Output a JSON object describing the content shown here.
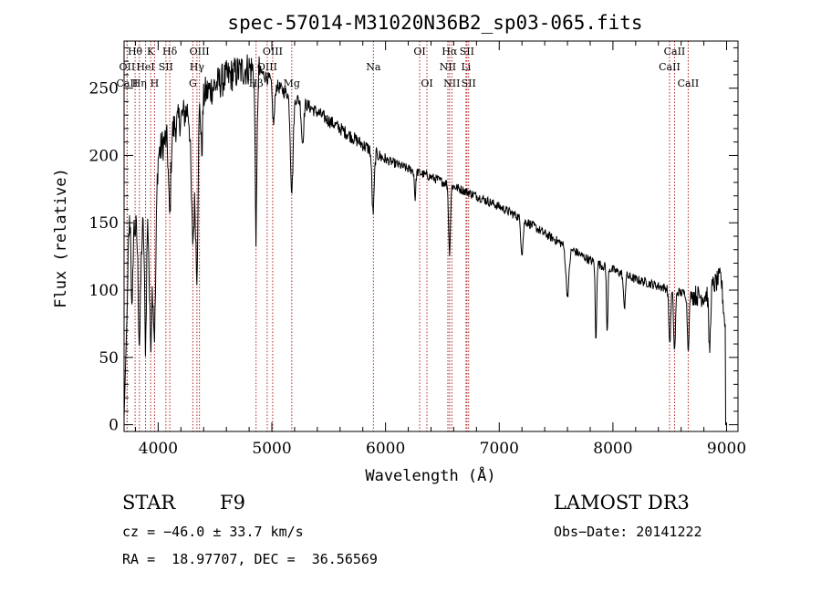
{
  "chart_data": {
    "type": "line",
    "title": "spec-57014-M31020N36B2_sp03-065.fits",
    "xlabel": "Wavelength (Å)",
    "ylabel": "Flux (relative)",
    "xlim": [
      3700,
      9100
    ],
    "ylim": [
      -5,
      285
    ],
    "x_ticks": [
      4000,
      5000,
      6000,
      7000,
      8000,
      9000
    ],
    "y_ticks": [
      0,
      50,
      100,
      150,
      200,
      250
    ],
    "continuum": [
      [
        3700,
        100
      ],
      [
        3750,
        150
      ],
      [
        3800,
        145
      ],
      [
        3850,
        140
      ],
      [
        3900,
        160
      ],
      [
        3950,
        185
      ],
      [
        4000,
        200
      ],
      [
        4050,
        210
      ],
      [
        4100,
        215
      ],
      [
        4150,
        222
      ],
      [
        4200,
        228
      ],
      [
        4300,
        238
      ],
      [
        4400,
        245
      ],
      [
        4500,
        252
      ],
      [
        4600,
        258
      ],
      [
        4700,
        262
      ],
      [
        4800,
        265
      ],
      [
        4900,
        262
      ],
      [
        5000,
        255
      ],
      [
        5100,
        248
      ],
      [
        5200,
        243
      ],
      [
        5300,
        238
      ],
      [
        5400,
        232
      ],
      [
        5500,
        226
      ],
      [
        5600,
        220
      ],
      [
        5700,
        214
      ],
      [
        5800,
        208
      ],
      [
        5900,
        202
      ],
      [
        6000,
        197
      ],
      [
        6200,
        190
      ],
      [
        6400,
        184
      ],
      [
        6600,
        177
      ],
      [
        6800,
        170
      ],
      [
        7000,
        162
      ],
      [
        7200,
        153
      ],
      [
        7400,
        142
      ],
      [
        7600,
        132
      ],
      [
        7800,
        122
      ],
      [
        8000,
        115
      ],
      [
        8200,
        108
      ],
      [
        8400,
        103
      ],
      [
        8600,
        98
      ],
      [
        8800,
        95
      ],
      [
        8950,
        110
      ],
      [
        9000,
        60
      ]
    ],
    "absorption_features": [
      [
        3720,
        95,
        8
      ],
      [
        3770,
        70,
        6
      ],
      [
        3835,
        80,
        10
      ],
      [
        3889,
        95,
        8
      ],
      [
        3934,
        110,
        12
      ],
      [
        3968,
        120,
        12
      ],
      [
        4101,
        60,
        10
      ],
      [
        4305,
        100,
        15
      ],
      [
        4340,
        120,
        10
      ],
      [
        4383,
        40,
        8
      ],
      [
        4861,
        120,
        8
      ],
      [
        5015,
        30,
        10
      ],
      [
        5175,
        70,
        12
      ],
      [
        5270,
        30,
        10
      ],
      [
        5890,
        45,
        10
      ],
      [
        6260,
        20,
        6
      ],
      [
        6563,
        50,
        8
      ],
      [
        7200,
        25,
        10
      ],
      [
        7600,
        35,
        14
      ],
      [
        7850,
        60,
        6
      ],
      [
        7950,
        50,
        6
      ],
      [
        8100,
        25,
        8
      ],
      [
        8500,
        40,
        8
      ],
      [
        8542,
        45,
        8
      ],
      [
        8662,
        40,
        8
      ],
      [
        8850,
        45,
        8
      ]
    ],
    "lines": [
      {
        "name": "CaII",
        "wl": 3727,
        "row": 3
      },
      {
        "name": "OII",
        "wl": 3727,
        "row": 1
      },
      {
        "name": "Hθ",
        "wl": 3797,
        "row": 0
      },
      {
        "name": "Hη",
        "wl": 3835,
        "row": 2
      },
      {
        "name": "HeI",
        "wl": 3889,
        "row": 1
      },
      {
        "name": "K",
        "wl": 3934,
        "row": 0
      },
      {
        "name": "H",
        "wl": 3968,
        "row": 2
      },
      {
        "name": "SII",
        "wl": 4068,
        "row": 1
      },
      {
        "name": "Hδ",
        "wl": 4102,
        "row": 0
      },
      {
        "name": "G",
        "wl": 4305,
        "row": 2
      },
      {
        "name": "Hγ",
        "wl": 4341,
        "row": 1
      },
      {
        "name": "OIII",
        "wl": 4363,
        "row": 0
      },
      {
        "name": "Hβ",
        "wl": 4861,
        "row": 2
      },
      {
        "name": "OIII",
        "wl": 4959,
        "row": 1
      },
      {
        "name": "OIII",
        "wl": 5007,
        "row": 0
      },
      {
        "name": "Mg",
        "wl": 5175,
        "row": 2
      },
      {
        "name": "Na",
        "wl": 5893,
        "row": 1
      },
      {
        "name": "OI",
        "wl": 6300,
        "row": 0
      },
      {
        "name": "OI",
        "wl": 6364,
        "row": 2
      },
      {
        "name": "NII",
        "wl": 6548,
        "row": 1
      },
      {
        "name": "Hα",
        "wl": 6563,
        "row": 0
      },
      {
        "name": "NII",
        "wl": 6583,
        "row": 2
      },
      {
        "name": "Li",
        "wl": 6708,
        "row": 1
      },
      {
        "name": "SII",
        "wl": 6716,
        "row": 0
      },
      {
        "name": "SII",
        "wl": 6731,
        "row": 2
      },
      {
        "name": "CaII",
        "wl": 8498,
        "row": 1
      },
      {
        "name": "CaII",
        "wl": 8542,
        "row": 0
      },
      {
        "name": "CaII",
        "wl": 8662,
        "row": 2
      }
    ]
  },
  "info": {
    "class": "STAR",
    "subclass": "F9",
    "survey": "LAMOST DR3",
    "cz": "cz = −46.0 ± 33.7 km/s",
    "obs_date": "Obs−Date: 20141222",
    "radec": "RA =  18.97707, DEC =  36.56569"
  }
}
